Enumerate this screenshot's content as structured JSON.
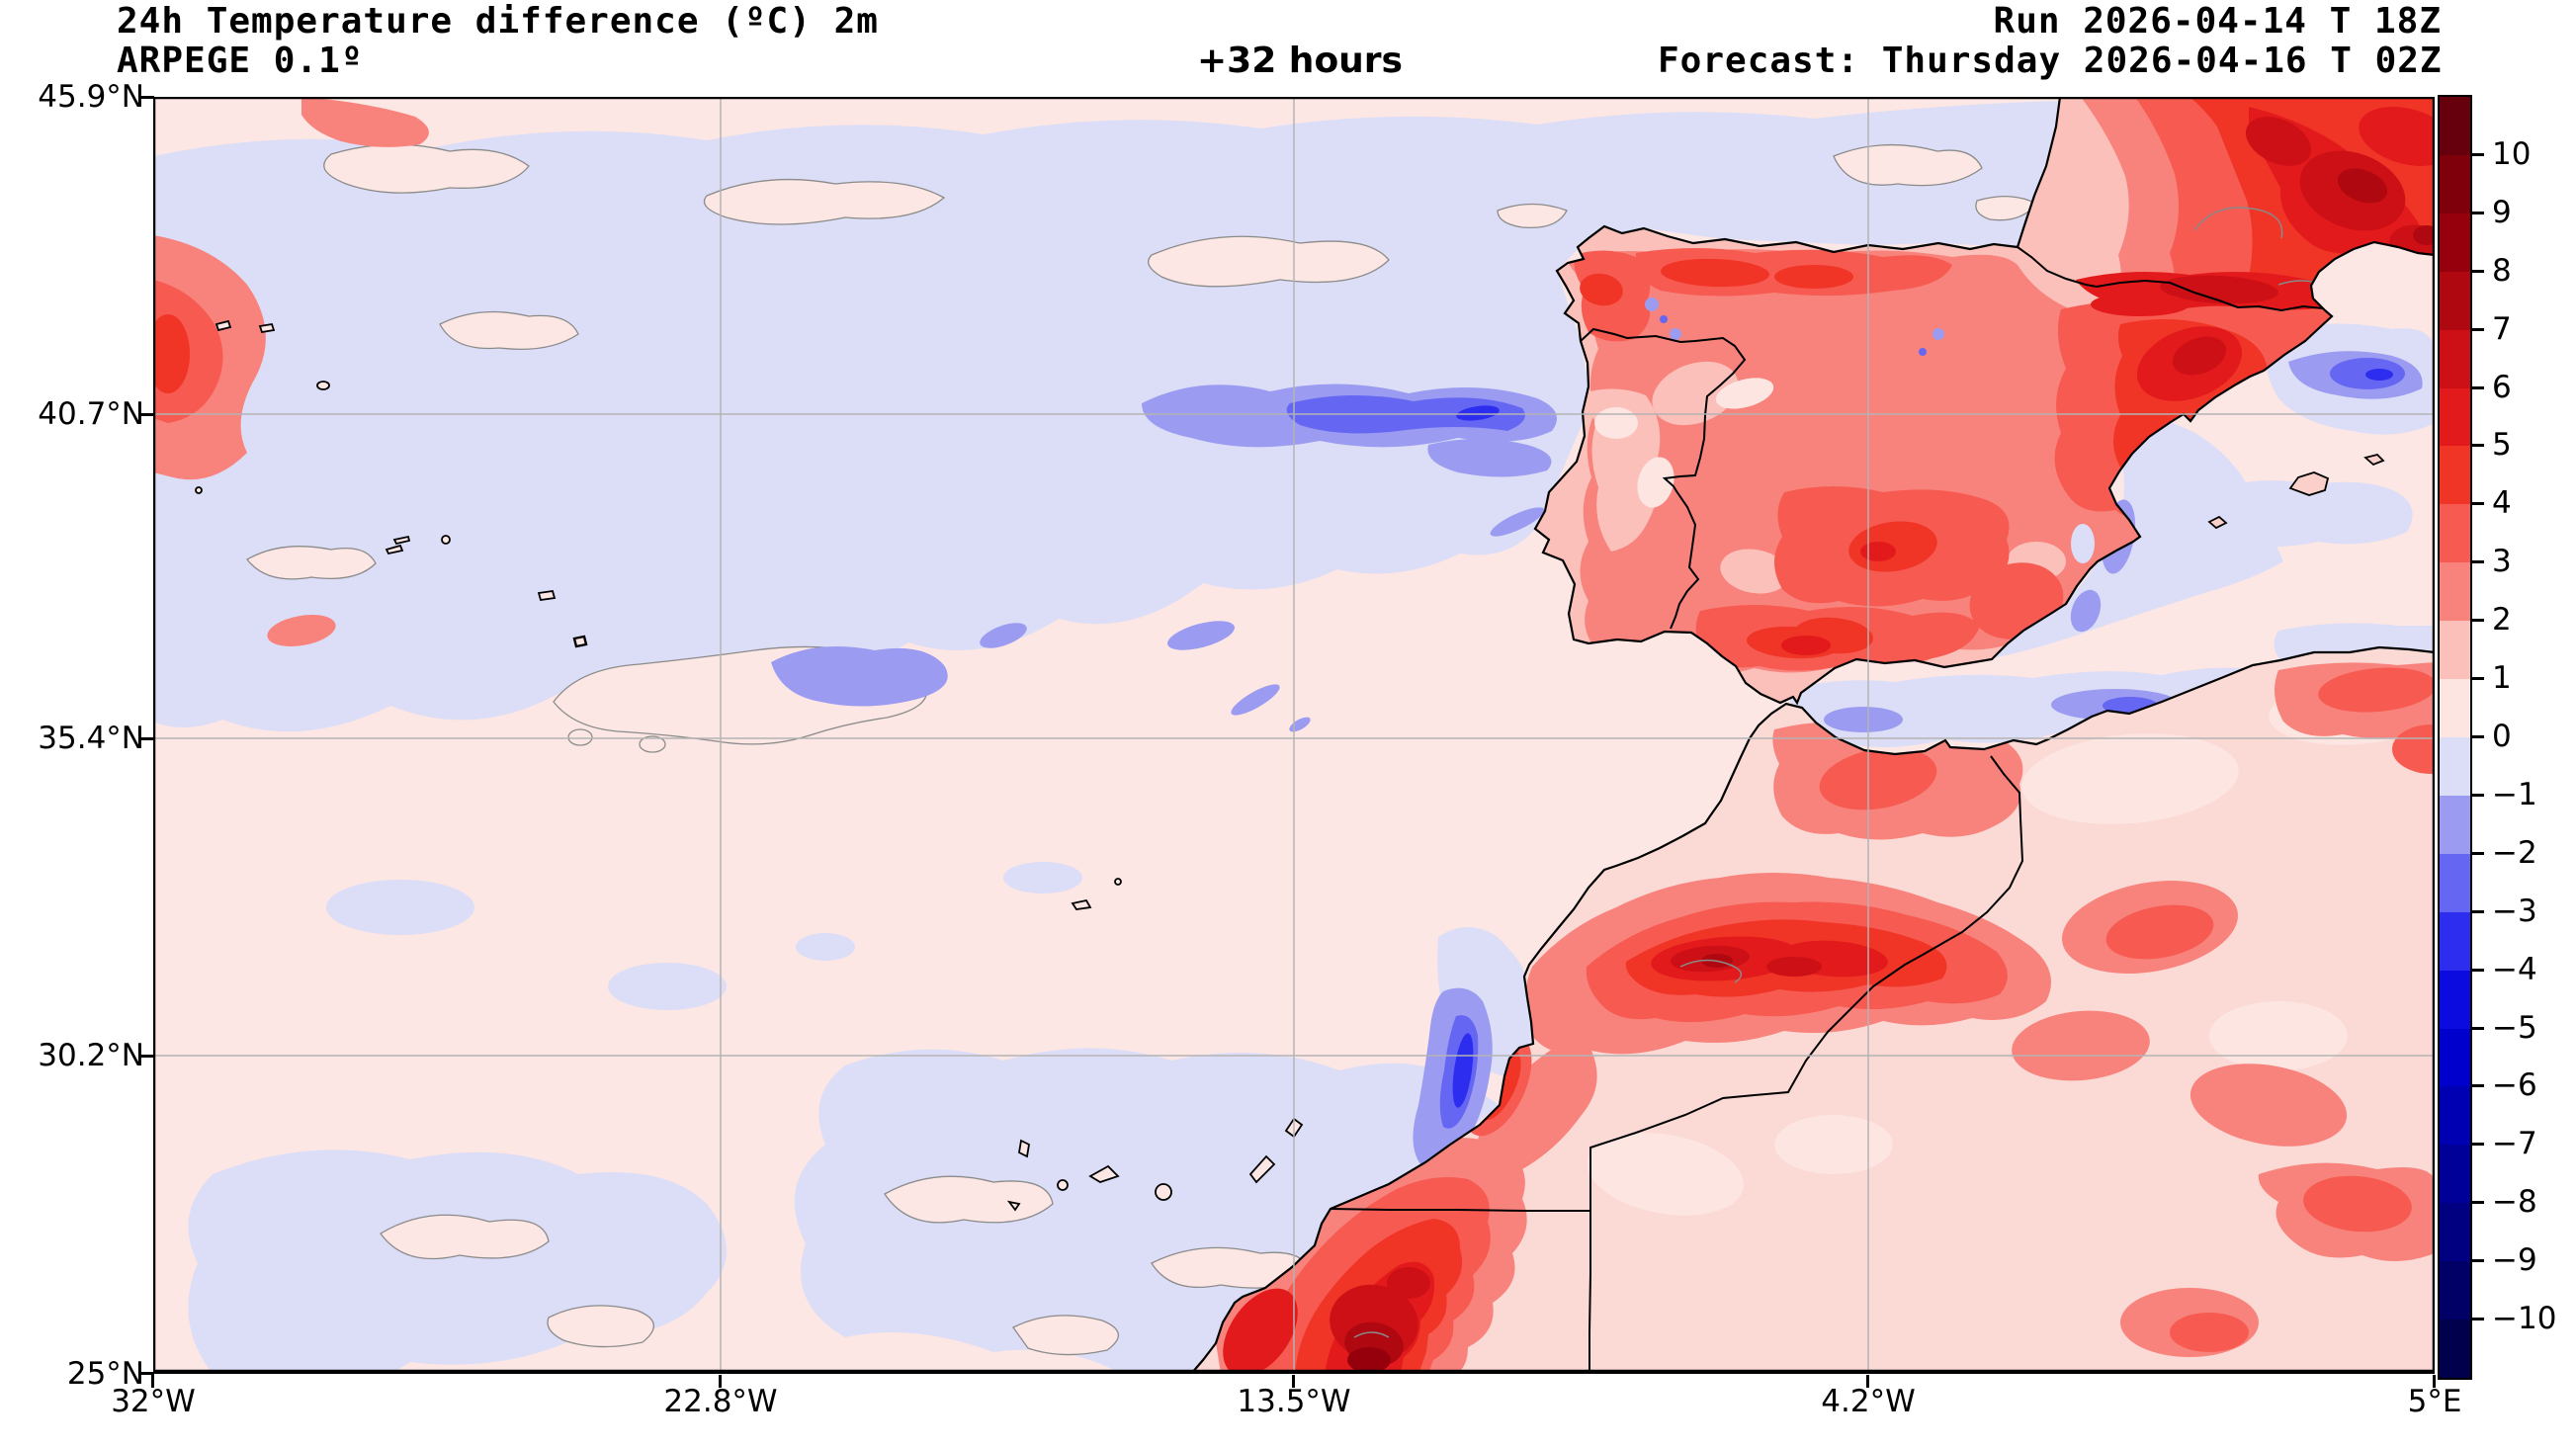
{
  "header": {
    "title": "24h Temperature difference (ºC) 2m",
    "model": "ARPEGE 0.1º",
    "lead_time": "+32 hours",
    "run": "Run 2026-04-14 T 18Z",
    "forecast": "Forecast: Thursday 2026-04-16 T 02Z"
  },
  "axes": {
    "y_labels": [
      "45.9°N",
      "40.7°N",
      "35.4°N",
      "30.2°N",
      "25°N"
    ],
    "x_labels": [
      "32°W",
      "22.8°W",
      "13.5°W",
      "4.2°W",
      "5°E"
    ]
  },
  "colorbar": {
    "tick_labels": [
      "10",
      "9",
      "8",
      "7",
      "6",
      "5",
      "4",
      "3",
      "2",
      "1",
      "0",
      "−1",
      "−2",
      "−3",
      "−4",
      "−5",
      "−6",
      "−7",
      "−8",
      "−9",
      "−10"
    ],
    "segment_colors": [
      "#67000d",
      "#7f000b",
      "#96000c",
      "#b00810",
      "#cc1016",
      "#e31a1c",
      "#f03527",
      "#f65a51",
      "#f8837c",
      "#fbc0ba",
      "#fde5e2",
      "#dcddf6",
      "#9b9cf1",
      "#6567f2",
      "#2d2df0",
      "#0b0be0",
      "#0000cc",
      "#0000b3",
      "#000099",
      "#000080",
      "#000066",
      "#00004d"
    ],
    "accent_positive": "#e31a1c",
    "accent_negative": "#0000cc"
  }
}
